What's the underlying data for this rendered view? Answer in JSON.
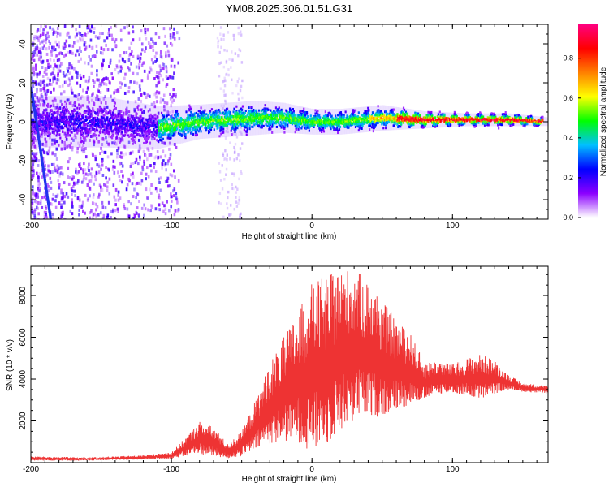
{
  "title": "YM08.2025.306.01.51.G31",
  "chart_data": [
    {
      "type": "heatmap",
      "xlabel": "Height of straight line (km)",
      "ylabel": "Frequency (Hz)",
      "xlim": [
        -200,
        168
      ],
      "ylim": [
        -50,
        50
      ],
      "xticks": [
        -200,
        -100,
        0,
        100
      ],
      "yticks": [
        -40,
        -20,
        0,
        20,
        40
      ],
      "colorbar": {
        "label": "Normalized spectral amplitude",
        "range": [
          0,
          0.97
        ],
        "ticks": [
          "0.0",
          "0.2",
          "0.4",
          "0.6",
          "0.8"
        ],
        "colors": [
          "#ffffff",
          "#8b00ff",
          "#0000ff",
          "#00bfff",
          "#00ff00",
          "#ffff00",
          "#ff8000",
          "#ff0000",
          "#ff0080"
        ]
      },
      "ridge": {
        "x": [
          -200,
          -150,
          -110,
          -80,
          -40,
          -20,
          0,
          20,
          50,
          80,
          110,
          140,
          168
        ],
        "center_hz": [
          0,
          0,
          -3,
          0,
          2,
          2,
          0,
          0,
          2,
          1,
          1,
          1,
          0
        ],
        "halfwidth_hz": [
          12,
          12,
          10,
          8,
          8,
          7,
          6,
          6,
          6,
          4,
          3,
          3,
          2
        ]
      }
    },
    {
      "type": "line",
      "color": "#ee3333",
      "xlabel": "Height of straight line (km)",
      "ylabel": "SNR (10 * v/v)",
      "xlim": [
        -200,
        168
      ],
      "ylim": [
        0,
        9400
      ],
      "xticks": [
        -200,
        -100,
        0,
        100
      ],
      "yticks": [
        2000,
        4000,
        6000,
        8000
      ],
      "envelope": {
        "x": [
          -200,
          -160,
          -120,
          -100,
          -90,
          -80,
          -70,
          -60,
          -50,
          -40,
          -30,
          -20,
          -10,
          0,
          10,
          20,
          30,
          40,
          50,
          60,
          70,
          80,
          90,
          100,
          110,
          120,
          130,
          140,
          150,
          168
        ],
        "low": [
          100,
          100,
          150,
          200,
          300,
          400,
          300,
          200,
          300,
          600,
          900,
          1000,
          1000,
          500,
          800,
          1500,
          2000,
          2200,
          2200,
          2500,
          2800,
          3000,
          3300,
          3300,
          3200,
          3000,
          3300,
          3500,
          3400,
          3300
        ],
        "high": [
          300,
          250,
          350,
          500,
          1200,
          2000,
          1700,
          900,
          1500,
          3000,
          4800,
          6000,
          7200,
          8600,
          8900,
          9300,
          9300,
          8700,
          7800,
          6800,
          6200,
          4800,
          4900,
          4700,
          5000,
          5200,
          4900,
          4200,
          3800,
          3700
        ]
      }
    }
  ]
}
